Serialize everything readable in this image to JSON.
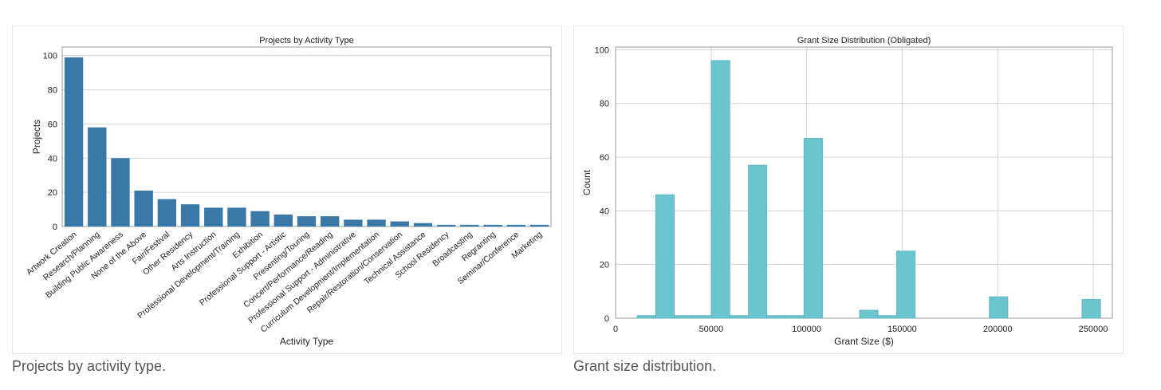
{
  "captions": {
    "left": "Projects by activity type.",
    "right": "Grant size distribution."
  },
  "colors": {
    "bar_left": "#3a78a8",
    "bar_right": "#6cc4cf",
    "bar_right_edge": "#5ab4bf",
    "grid": "#d3d3d3",
    "axis": "#9a9a9a"
  },
  "chart_data": [
    {
      "type": "bar",
      "title": "Projects by Activity Type",
      "xlabel": "Activity Type",
      "ylabel": "Projects",
      "ylim": [
        0,
        105
      ],
      "yticks": [
        0,
        20,
        40,
        60,
        80,
        100
      ],
      "grid": true,
      "categories": [
        "Artwork Creation",
        "Research/Planning",
        "Building Public Awareness",
        "None of the Above",
        "Fair/Festival",
        "Other Residency",
        "Arts Instruction",
        "Professional Development/Training",
        "Exhibition",
        "Professional Support - Artistic",
        "Presenting/Touring",
        "Concert/Performance/Reading",
        "Professional Support - Administrative",
        "Curriculum Development/Implementation",
        "Repair/Restoration/Conservation",
        "Technical Assistance",
        "School Residency",
        "Broadcasting",
        "Regranting",
        "Seminar/Conference",
        "Marketing"
      ],
      "values": [
        99,
        58,
        40,
        21,
        16,
        13,
        11,
        11,
        9,
        7,
        6,
        6,
        4,
        4,
        3,
        2,
        1,
        1,
        1,
        1,
        1
      ]
    },
    {
      "type": "bar",
      "subtype": "histogram",
      "title": "Grant Size Distribution (Obligated)",
      "xlabel": "Grant Size ($)",
      "ylabel": "Count",
      "xlim": [
        0,
        260000
      ],
      "ylim": [
        0,
        101
      ],
      "xticks": [
        0,
        50000,
        100000,
        150000,
        200000,
        250000
      ],
      "yticks": [
        0,
        20,
        40,
        60,
        80,
        100
      ],
      "grid": true,
      "bin_width": 9700,
      "bin_start": 11300,
      "counts": [
        1,
        46,
        1,
        1,
        96,
        1,
        57,
        1,
        1,
        67,
        0,
        0,
        3,
        1,
        25,
        0,
        0,
        0,
        0,
        8,
        0,
        0,
        0,
        0,
        7
      ]
    }
  ]
}
